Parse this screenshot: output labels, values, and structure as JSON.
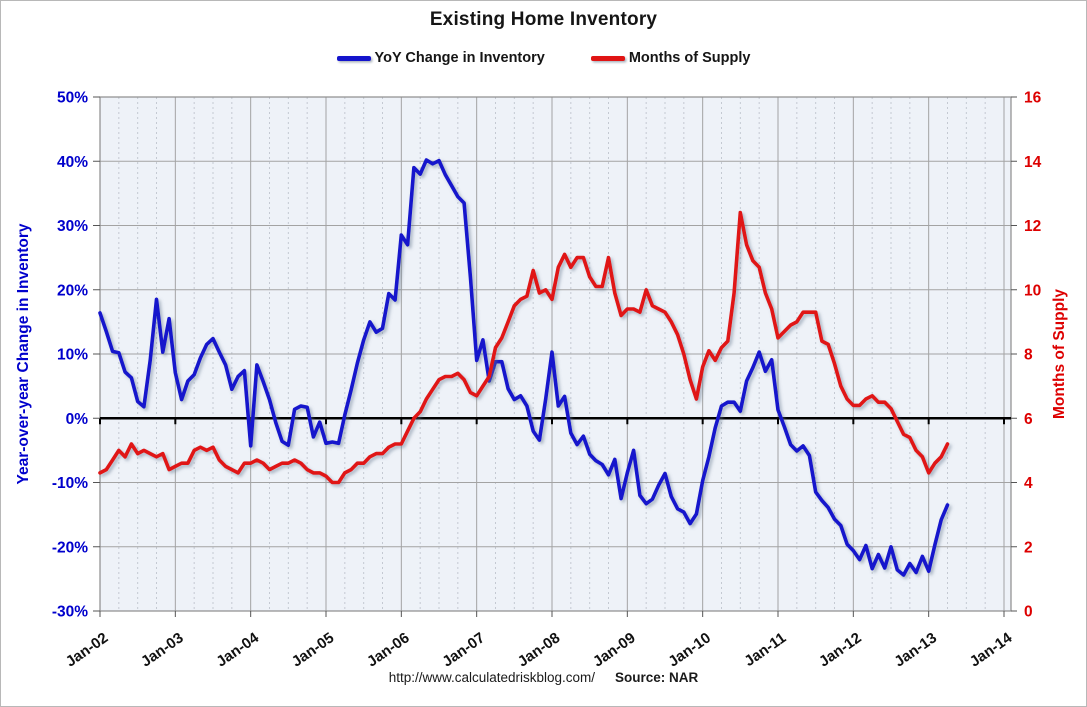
{
  "title": "Existing Home Inventory",
  "legend": [
    {
      "label": "YoY Change in Inventory",
      "color": "#1414cc"
    },
    {
      "label": "Months of Supply",
      "color": "#e01414"
    }
  ],
  "footer": {
    "url": "http://www.calculatedriskblog.com/",
    "source": "Source: NAR"
  },
  "colors": {
    "blue_line": "#1414cc",
    "red_line": "#e01414",
    "blue_axis_text": "#0000cc",
    "red_axis_text": "#dd0000",
    "plot_bg": "#eef2f8",
    "grid_major": "#a3a3a3",
    "grid_minor": "#c4c9d2",
    "plot_border": "#8c8c8c",
    "zero_line": "#000000"
  },
  "chart_data": {
    "type": "line",
    "frequency": "monthly",
    "x_start": "Jan-2002",
    "x_end": "Apr-2013",
    "x_tick_labels": [
      "Jan-02",
      "Jan-03",
      "Jan-04",
      "Jan-05",
      "Jan-06",
      "Jan-07",
      "Jan-08",
      "Jan-09",
      "Jan-10",
      "Jan-11",
      "Jan-12",
      "Jan-13",
      "Jan-14"
    ],
    "title": "Existing Home Inventory",
    "left_axis": {
      "label": "Year-over-year Change in Inventory",
      "min": -30,
      "max": 50,
      "step": 10,
      "tick_labels": [
        "50%",
        "40%",
        "30%",
        "20%",
        "10%",
        "0%",
        "-10%",
        "-20%",
        "-30%"
      ]
    },
    "right_axis": {
      "label": "Months of Supply",
      "min": 0,
      "max": 16,
      "step": 2,
      "tick_labels": [
        "16",
        "14",
        "12",
        "10",
        "8",
        "6",
        "4",
        "2",
        "0"
      ]
    },
    "grid": {
      "x_major": "yearly-solid",
      "x_minor": "quarterly-dashed",
      "y_major": "solid",
      "zero_line": "black"
    },
    "legend_position": "top",
    "series": [
      {
        "name": "YoY Change in Inventory",
        "axis": "left",
        "unit": "%",
        "values": [
          16.4,
          13.5,
          10.4,
          10.2,
          7.2,
          6.3,
          2.6,
          1.8,
          9.0,
          18.5,
          10.3,
          15.5,
          7.1,
          2.9,
          5.8,
          6.8,
          9.4,
          11.5,
          12.4,
          10.3,
          8.3,
          4.5,
          6.5,
          7.4,
          -4.3,
          8.3,
          5.7,
          2.9,
          -0.7,
          -3.6,
          -4.2,
          1.4,
          1.9,
          1.7,
          -2.9,
          -0.6,
          -3.9,
          -3.7,
          -3.9,
          0.5,
          4.4,
          8.6,
          12.2,
          15.0,
          13.4,
          14.0,
          19.4,
          18.4,
          28.5,
          27.0,
          39.0,
          38.0,
          40.2,
          39.6,
          40.1,
          37.9,
          36.2,
          34.5,
          33.5,
          22.0,
          9.0,
          12.2,
          5.8,
          8.8,
          8.8,
          4.6,
          2.9,
          3.5,
          1.9,
          -2.0,
          -3.4,
          3.0,
          10.3,
          1.9,
          3.4,
          -2.3,
          -4.1,
          -2.8,
          -5.6,
          -6.6,
          -7.2,
          -8.8,
          -6.4,
          -12.5,
          -8.5,
          -5.0,
          -12.0,
          -13.3,
          -12.6,
          -10.4,
          -8.6,
          -12.2,
          -14.1,
          -14.6,
          -16.4,
          -14.9,
          -9.7,
          -6.0,
          -1.5,
          1.9,
          2.5,
          2.5,
          1.1,
          5.8,
          7.9,
          10.3,
          7.3,
          9.1,
          1.3,
          -1.3,
          -4.1,
          -5.1,
          -4.3,
          -5.8,
          -11.5,
          -12.8,
          -13.9,
          -15.7,
          -16.7,
          -19.6,
          -20.6,
          -22.0,
          -19.8,
          -23.4,
          -21.2,
          -23.3,
          -20.0,
          -23.6,
          -24.4,
          -22.6,
          -24.0,
          -21.5,
          -23.8,
          -19.7,
          -15.8,
          -13.5
        ]
      },
      {
        "name": "Months of Supply",
        "axis": "right",
        "unit": "months",
        "values": [
          4.3,
          4.4,
          4.7,
          5.0,
          4.8,
          5.2,
          4.9,
          5.0,
          4.9,
          4.8,
          4.9,
          4.4,
          4.5,
          4.6,
          4.6,
          5.0,
          5.1,
          5.0,
          5.1,
          4.7,
          4.5,
          4.4,
          4.3,
          4.6,
          4.6,
          4.7,
          4.6,
          4.4,
          4.5,
          4.6,
          4.6,
          4.7,
          4.6,
          4.4,
          4.3,
          4.3,
          4.2,
          4.0,
          4.0,
          4.3,
          4.4,
          4.6,
          4.6,
          4.8,
          4.9,
          4.9,
          5.1,
          5.2,
          5.2,
          5.6,
          6.0,
          6.2,
          6.6,
          6.9,
          7.2,
          7.3,
          7.3,
          7.4,
          7.2,
          6.8,
          6.7,
          7.0,
          7.3,
          8.2,
          8.5,
          9.0,
          9.5,
          9.7,
          9.8,
          10.6,
          9.9,
          10.0,
          9.7,
          10.7,
          11.1,
          10.7,
          11.0,
          11.0,
          10.4,
          10.1,
          10.1,
          11.0,
          9.9,
          9.2,
          9.4,
          9.4,
          9.3,
          10.0,
          9.5,
          9.4,
          9.3,
          9.0,
          8.6,
          8.0,
          7.2,
          6.6,
          7.6,
          8.1,
          7.8,
          8.2,
          8.4,
          9.9,
          12.4,
          11.4,
          10.9,
          10.7,
          9.9,
          9.4,
          8.5,
          8.7,
          8.9,
          9.0,
          9.3,
          9.3,
          9.3,
          8.4,
          8.3,
          7.7,
          7.0,
          6.6,
          6.4,
          6.4,
          6.6,
          6.7,
          6.5,
          6.5,
          6.3,
          5.9,
          5.5,
          5.4,
          5.0,
          4.8,
          4.3,
          4.6,
          4.8,
          5.2
        ]
      }
    ]
  }
}
